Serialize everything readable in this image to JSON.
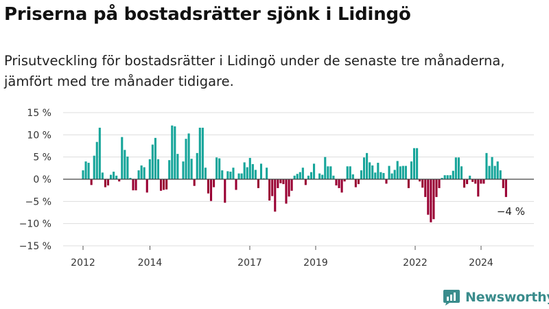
{
  "header": {
    "title": "Priserna på bostadsrätter sjönk i Lidingö",
    "subtitle": "Prisutveckling för bostadsrätter i Lidingö under de senaste tre månaderna, jämfört med tre månader tidigare."
  },
  "brand": {
    "name": "Newsworthy"
  },
  "colors": {
    "positive": "#16a59a",
    "negative": "#990033",
    "grid": "#dddddd",
    "axis": "#444444"
  },
  "chart_data": {
    "type": "bar",
    "title": "",
    "xlabel": "",
    "ylabel": "",
    "ylim": [
      -15,
      15
    ],
    "y_ticks": [
      15,
      10,
      5,
      0,
      -5,
      -10,
      -15
    ],
    "y_tick_labels": [
      "15 %",
      "10 %",
      "5 %",
      "0 %",
      "−5 %",
      "−10 %",
      "−15 %"
    ],
    "x_ticks": [
      "2012",
      "2014",
      "2017",
      "2019",
      "2022",
      "2024"
    ],
    "grid": true,
    "annotation": "−4 %",
    "series": [
      {
        "values": [
          2,
          4,
          3.7,
          -1.3,
          5.3,
          8.4,
          11.6,
          1.5,
          -1.8,
          -1.4,
          1,
          1.7,
          0.8,
          -0.5,
          9.5,
          6.6,
          5.1,
          0.3,
          -2.5,
          -2.5,
          2,
          3.1,
          2.7,
          -3,
          4.5,
          7.8,
          9.3,
          4.5,
          -2.6,
          -2.4,
          -2.3,
          4.3,
          12.1,
          11.9,
          5.7,
          0.1,
          4,
          9.1,
          10.3,
          4.6,
          -1.5,
          5.9,
          11.6,
          11.6,
          2.6,
          -3.2,
          -4.9,
          -1.8,
          4.9,
          4.7,
          2,
          -5.3,
          1.8,
          1.7,
          2.6,
          -2.4,
          1.3,
          1.3,
          3.8,
          2.7,
          4.8,
          3.4,
          2.1,
          -2,
          3.5,
          0.2,
          2.6,
          -4.8,
          -3.8,
          -7.3,
          -2,
          -0.9,
          -1.1,
          -5.5,
          -3.9,
          -2.6,
          0.8,
          1.2,
          1.6,
          2.6,
          -1.3,
          0.8,
          1.6,
          3.5,
          0.1,
          1.3,
          1,
          5,
          2.9,
          2.9,
          0.8,
          -1.4,
          -2,
          -3,
          -0.5,
          2.9,
          2.9,
          1.1,
          -1.8,
          -1.1,
          2,
          4.9,
          5.9,
          3.8,
          3.1,
          1.5,
          3.7,
          1.6,
          1.4,
          -1,
          3,
          1.3,
          2.1,
          4.1,
          2.9,
          3,
          3,
          -2,
          4,
          7,
          7,
          -0.5,
          -1.9,
          -4,
          -8,
          -9.7,
          -9,
          -4,
          -2,
          0.3,
          0.9,
          0.9,
          0.9,
          1.9,
          4.9,
          4.9,
          2.9,
          -1.9,
          -1.1,
          0.8,
          -0.6,
          -1,
          -3.9,
          -1,
          -1,
          5.9,
          3,
          5,
          3,
          4,
          2,
          -2,
          -4
        ]
      }
    ]
  }
}
